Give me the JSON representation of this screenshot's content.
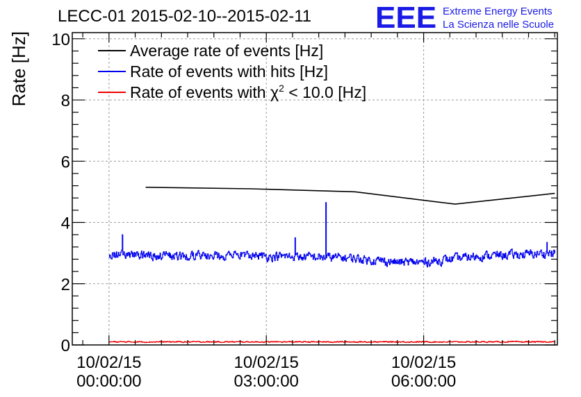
{
  "chart_data": {
    "type": "line",
    "title": "LECC-01 2015-02-10--2015-02-11",
    "ylabel": "Rate [Hz]",
    "xlabel": "",
    "ylim": [
      0,
      10.2
    ],
    "yticks": [
      0,
      2,
      4,
      6,
      8,
      10
    ],
    "yticklabels": [
      "0",
      "2",
      "4",
      "6",
      "8",
      "10"
    ],
    "xlim_hours": [
      -0.7,
      8.55
    ],
    "xticks": [
      {
        "hour": 0,
        "date": "10/02/15",
        "time": "00:00:00"
      },
      {
        "hour": 3,
        "date": "10/02/15",
        "time": "03:00:00"
      },
      {
        "hour": 6,
        "date": "10/02/15",
        "time": "06:00:00"
      }
    ],
    "grid": true,
    "legend_position": "top-left",
    "logo": {
      "mark": "EEE",
      "line1": "Extreme Energy Events",
      "line2": "La Scienza nelle Scuole",
      "color": "#1a1ae6"
    },
    "series": [
      {
        "name": "Average rate of events [Hz]",
        "color": "#000000",
        "style": "segments",
        "x": [
          0.7,
          2.7,
          4.7,
          6.6,
          8.5
        ],
        "y": [
          5.15,
          5.1,
          5.0,
          4.6,
          4.95
        ]
      },
      {
        "name": "Rate of events with hits [Hz]",
        "color": "#0000ee",
        "style": "noisy",
        "x_start": 0.0,
        "x_end": 8.5,
        "samples": 840,
        "base_points": [
          [
            0.0,
            2.95
          ],
          [
            1.5,
            2.9
          ],
          [
            3.0,
            2.9
          ],
          [
            4.5,
            2.85
          ],
          [
            5.5,
            2.7
          ],
          [
            6.0,
            2.7
          ],
          [
            7.0,
            2.9
          ],
          [
            8.5,
            3.0
          ]
        ],
        "amplitude": 0.22,
        "spikes": [
          [
            4.13,
            4.65
          ],
          [
            0.25,
            3.6
          ],
          [
            3.55,
            3.5
          ],
          [
            8.35,
            3.35
          ]
        ]
      },
      {
        "name": "Rate of events with χ² < 10.0 [Hz]",
        "legend_main": "Rate of events with ",
        "legend_chi": "χ",
        "legend_sup": "2",
        "legend_rest": " < 10.0 [Hz]",
        "color": "#ee0000",
        "style": "noisy",
        "x_start": 0.0,
        "x_end": 8.5,
        "samples": 840,
        "base_points": [
          [
            0.0,
            0.1
          ],
          [
            8.5,
            0.1
          ]
        ],
        "amplitude": 0.03,
        "spikes": []
      }
    ]
  }
}
